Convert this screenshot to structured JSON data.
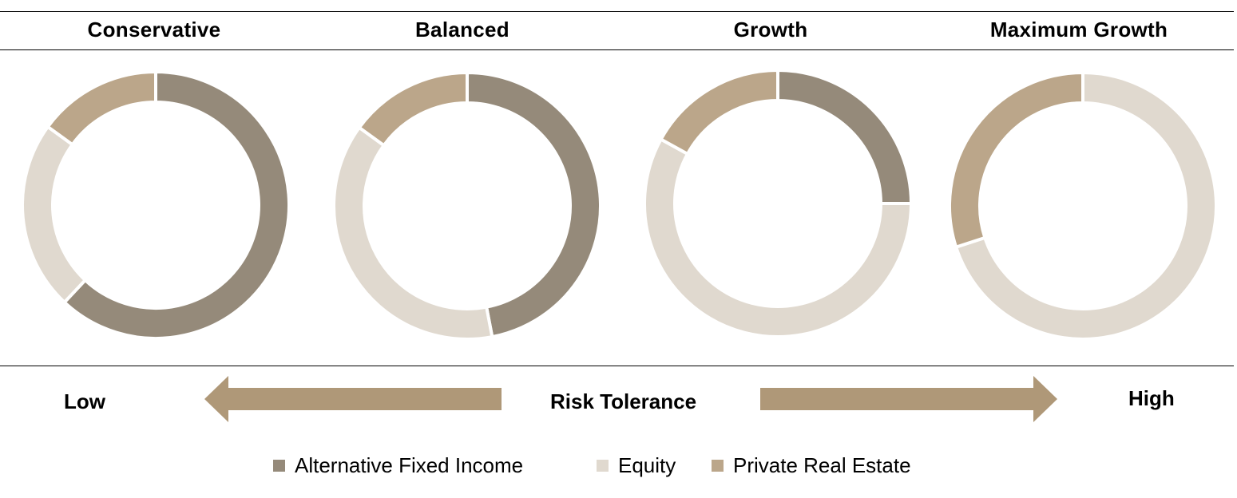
{
  "chart_data": {
    "type": "donut",
    "series": [
      {
        "name": "Alternative Fixed Income",
        "color": "#958a7a"
      },
      {
        "name": "Equity",
        "color": "#e0d9cf"
      },
      {
        "name": "Private Real Estate",
        "color": "#bba68a"
      }
    ],
    "portfolios": [
      {
        "title": "Conservative",
        "values": [
          62,
          23,
          15
        ]
      },
      {
        "title": "Balanced",
        "values": [
          47,
          38,
          15
        ]
      },
      {
        "title": "Growth",
        "values": [
          25,
          58,
          17
        ]
      },
      {
        "title": "Maximum Growth",
        "values": [
          0,
          70,
          30
        ]
      }
    ]
  },
  "risk": {
    "low": "Low",
    "label": "Risk Tolerance",
    "high": "High",
    "arrow_color": "#af9878"
  }
}
